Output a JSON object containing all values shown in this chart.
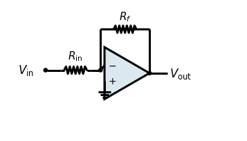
{
  "bg_color": "#ffffff",
  "line_color": "#000000",
  "line_width": 2.2,
  "op_amp_fill": "#dce8f0",
  "vin_label": "$V_{\\mathrm{in}}$",
  "vout_label": "$V_{\\mathrm{out}}$",
  "rin_label": "$R_{\\mathrm{in}}$",
  "rf_label": "$R_f$",
  "minus_label": "$-$",
  "plus_label": "$+$",
  "figsize": [
    3.57,
    2.05
  ],
  "dpi": 100
}
